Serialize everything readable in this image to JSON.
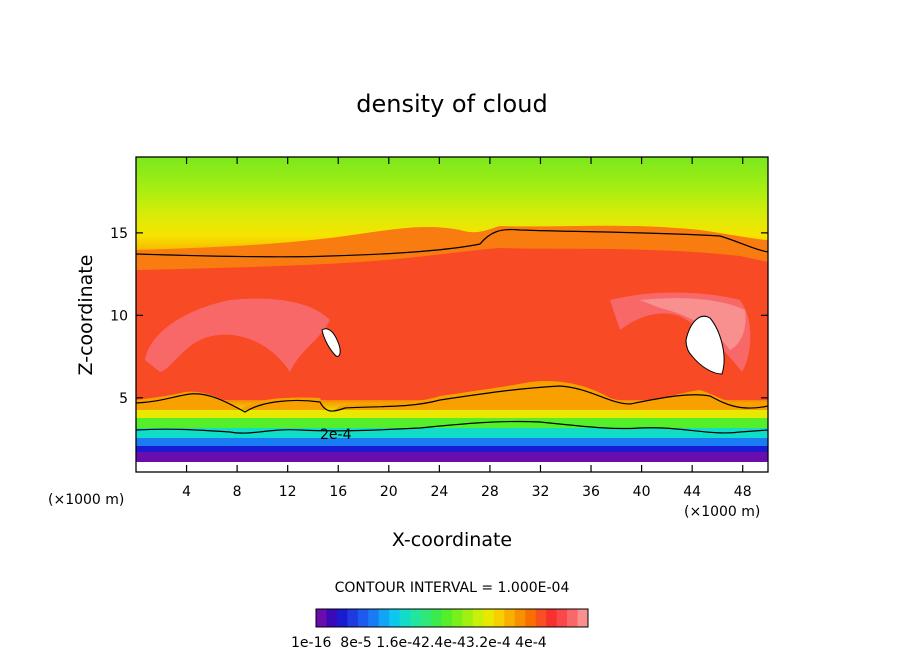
{
  "chart_data": {
    "type": "heatmap",
    "title": "density of cloud",
    "xlabel": "X-coordinate",
    "ylabel": "Z-coordinate",
    "x_unit_note": "(×1000 m)",
    "x_unit_note_right": "(×1000 m)",
    "xlim": [
      0,
      50
    ],
    "ylim": [
      0.5,
      19.6
    ],
    "x_ticks": [
      4,
      8,
      12,
      16,
      20,
      24,
      28,
      32,
      36,
      40,
      44,
      48
    ],
    "y_ticks": [
      5,
      10,
      15
    ],
    "contour_interval_text": "CONTOUR INTERVAL = 1.000E-04",
    "contour_label": "2e-4",
    "colorbar_labels": [
      "1e-16",
      "8e-5",
      "1.6e-4",
      "2.4e-4",
      "3.2e-4",
      "4e-4"
    ],
    "colorbar_label_text": "1e-16  8e-5 1.6e-42.4e-43.2e-4 4e-4",
    "colorbar_colors": [
      "#6a0dad",
      "#3a0ab8",
      "#1a1ad0",
      "#1e3ae0",
      "#1f5af0",
      "#1a7cf5",
      "#12a4f5",
      "#0dc8ee",
      "#10dcc8",
      "#20e6a0",
      "#2ee87a",
      "#3aeb50",
      "#55ee2a",
      "#7af01a",
      "#a0f012",
      "#c8f00a",
      "#e8e800",
      "#f8d000",
      "#f8b000",
      "#f89000",
      "#f87000",
      "#f85020",
      "#f83030",
      "#f84848",
      "#f86868",
      "#f89090"
    ],
    "description_levels": "cloud density field, low values near surface and top, max (~4e-4) around z=6-12 km"
  },
  "colors": {
    "background": "#ffffff",
    "axis": "#000000",
    "contour": "#000000"
  }
}
